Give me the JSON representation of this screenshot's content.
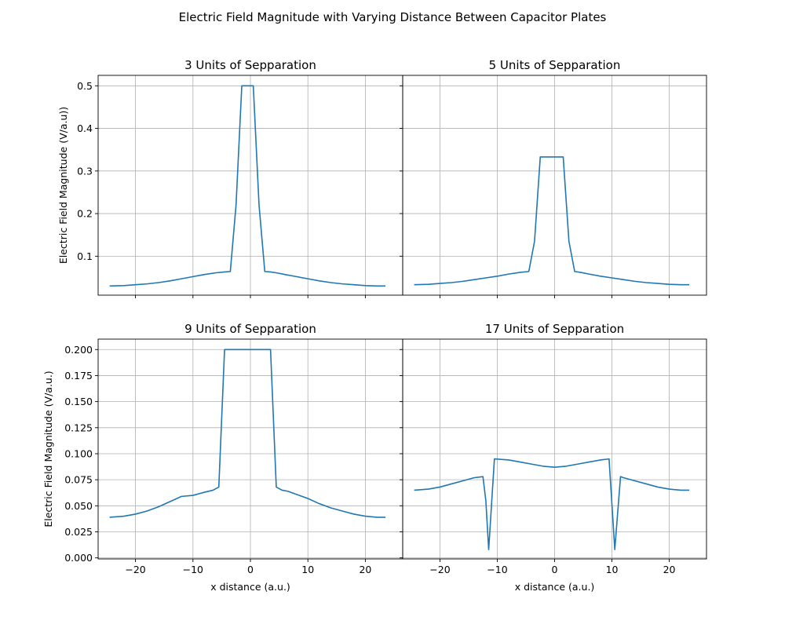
{
  "figure": {
    "title": "Electric Field Magnitude with Varying Distance Between Capacitor Plates"
  },
  "chart_data": [
    {
      "type": "line",
      "title": "3 Units of Sepparation",
      "xlabel": "",
      "ylabel": "Electric Field Magnitude (V/a.u))",
      "xlim": [
        -26.5,
        26.5
      ],
      "ylim": [
        0.0085,
        0.5245
      ],
      "xticks": [
        -20,
        -10,
        0,
        10,
        20
      ],
      "xtick_labels": [
        "",
        "",
        "",
        "",
        ""
      ],
      "yticks": [
        0.1,
        0.2,
        0.3,
        0.4,
        0.5
      ],
      "ytick_labels": [
        "0.1",
        "0.2",
        "0.3",
        "0.4",
        "0.5"
      ],
      "grid": true,
      "line_color": "#1f77b4",
      "x": [
        -24.5,
        -22,
        -20,
        -18,
        -16,
        -14,
        -12,
        -10,
        -8,
        -6,
        -4.5,
        -3.5,
        -2.5,
        -1.5,
        -0.5,
        0.5,
        1.5,
        2.5,
        3.5,
        4.5,
        6,
        8,
        10,
        12,
        14,
        16,
        18,
        20,
        22,
        23.5
      ],
      "y": [
        0.03,
        0.031,
        0.033,
        0.035,
        0.038,
        0.042,
        0.047,
        0.052,
        0.057,
        0.061,
        0.063,
        0.064,
        0.22,
        0.5,
        0.5,
        0.5,
        0.22,
        0.064,
        0.063,
        0.061,
        0.057,
        0.052,
        0.047,
        0.042,
        0.038,
        0.035,
        0.033,
        0.031,
        0.03,
        0.03
      ]
    },
    {
      "type": "line",
      "title": "5 Units of Sepparation",
      "xlabel": "",
      "ylabel": "",
      "xlim": [
        -26.5,
        26.5
      ],
      "ylim": [
        0.0085,
        0.5245
      ],
      "xticks": [
        -20,
        -10,
        0,
        10,
        20
      ],
      "xtick_labels": [
        "",
        "",
        "",
        "",
        ""
      ],
      "yticks": [
        0.1,
        0.2,
        0.3,
        0.4,
        0.5
      ],
      "ytick_labels": [
        "",
        "",
        "",
        "",
        ""
      ],
      "grid": true,
      "line_color": "#1f77b4",
      "x": [
        -24.5,
        -22,
        -20,
        -18,
        -16,
        -14,
        -12,
        -10,
        -8,
        -6,
        -4.5,
        -3.5,
        -2.5,
        -1.5,
        -0.5,
        0.5,
        1.5,
        2.5,
        3.5,
        4.5,
        6,
        8,
        10,
        12,
        14,
        16,
        18,
        20,
        22,
        23.5
      ],
      "y": [
        0.033,
        0.034,
        0.036,
        0.038,
        0.041,
        0.045,
        0.049,
        0.053,
        0.058,
        0.062,
        0.064,
        0.135,
        0.333,
        0.333,
        0.333,
        0.333,
        0.333,
        0.135,
        0.064,
        0.062,
        0.058,
        0.053,
        0.049,
        0.045,
        0.041,
        0.038,
        0.036,
        0.034,
        0.033,
        0.033
      ]
    },
    {
      "type": "line",
      "title": "9 Units of Sepparation",
      "xlabel": "x distance (a.u.)",
      "ylabel": "Electric Field Magnitude (V/a.u.)",
      "xlim": [
        -26.5,
        26.5
      ],
      "ylim": [
        -0.001,
        0.21
      ],
      "xticks": [
        -20,
        -10,
        0,
        10,
        20
      ],
      "xtick_labels": [
        "−20",
        "−10",
        "0",
        "10",
        "20"
      ],
      "yticks": [
        0.0,
        0.025,
        0.05,
        0.075,
        0.1,
        0.125,
        0.15,
        0.175,
        0.2
      ],
      "ytick_labels": [
        "0.000",
        "0.025",
        "0.050",
        "0.075",
        "0.100",
        "0.125",
        "0.150",
        "0.175",
        "0.200"
      ],
      "grid": true,
      "line_color": "#1f77b4",
      "x": [
        -24.5,
        -22,
        -20,
        -18,
        -16,
        -14,
        -12,
        -10,
        -8,
        -6.5,
        -5.5,
        -4.5,
        -2,
        0,
        2,
        3.5,
        4.5,
        5.5,
        6.5,
        8,
        10,
        12,
        14,
        16,
        18,
        20,
        22,
        23.5
      ],
      "y": [
        0.039,
        0.04,
        0.042,
        0.045,
        0.049,
        0.054,
        0.059,
        0.06,
        0.063,
        0.065,
        0.068,
        0.2,
        0.2,
        0.2,
        0.2,
        0.2,
        0.068,
        0.065,
        0.064,
        0.061,
        0.057,
        0.052,
        0.048,
        0.045,
        0.042,
        0.04,
        0.039,
        0.039
      ]
    },
    {
      "type": "line",
      "title": "17 Units of Sepparation",
      "xlabel": "x distance (a.u.)",
      "ylabel": "",
      "xlim": [
        -26.5,
        26.5
      ],
      "ylim": [
        -0.001,
        0.21
      ],
      "xticks": [
        -20,
        -10,
        0,
        10,
        20
      ],
      "xtick_labels": [
        "−20",
        "−10",
        "0",
        "10",
        "20"
      ],
      "yticks": [
        0.0,
        0.025,
        0.05,
        0.075,
        0.1,
        0.125,
        0.15,
        0.175,
        0.2
      ],
      "ytick_labels": [
        "",
        "",
        "",
        "",
        "",
        "",
        "",
        "",
        ""
      ],
      "grid": true,
      "line_color": "#1f77b4",
      "x": [
        -24.5,
        -22,
        -20,
        -18,
        -16,
        -14,
        -12.5,
        -12,
        -11.5,
        -10.5,
        -8,
        -6,
        -4,
        -2,
        0,
        2,
        4,
        6,
        8,
        9.5,
        10.5,
        11.5,
        12,
        14,
        16,
        18,
        20,
        22,
        23.5
      ],
      "y": [
        0.065,
        0.066,
        0.068,
        0.071,
        0.074,
        0.077,
        0.078,
        0.055,
        0.008,
        0.095,
        0.094,
        0.092,
        0.09,
        0.088,
        0.087,
        0.088,
        0.09,
        0.092,
        0.094,
        0.095,
        0.008,
        0.078,
        0.077,
        0.074,
        0.071,
        0.068,
        0.066,
        0.065,
        0.065
      ]
    }
  ]
}
